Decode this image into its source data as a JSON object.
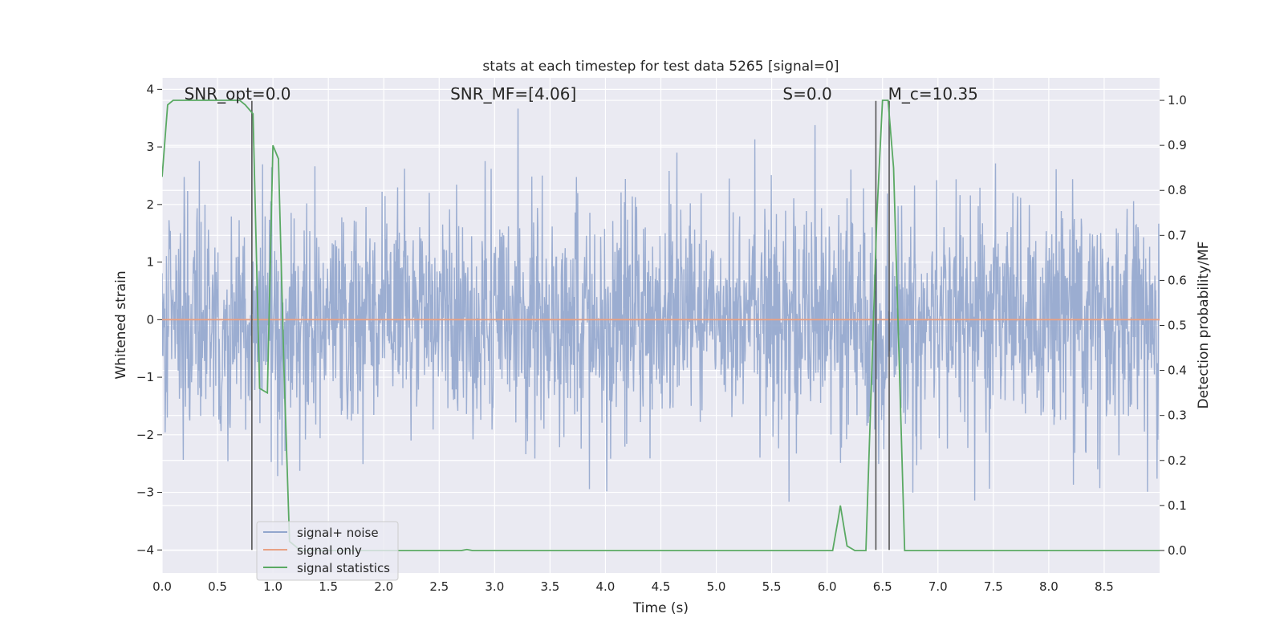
{
  "chart_data": {
    "type": "line",
    "title": "stats at each timestep for test data 5265 [signal=0]",
    "xlabel": "Time (s)",
    "ylabel": "Whitened strain",
    "y2label": "Detection probability/MF",
    "xlim": [
      0.0,
      9.0
    ],
    "ylim": [
      -4.4,
      4.2
    ],
    "y2lim": [
      -0.05,
      1.05
    ],
    "xticks": [
      "0.0",
      "0.5",
      "1.0",
      "1.5",
      "2.0",
      "2.5",
      "3.0",
      "3.5",
      "4.0",
      "4.5",
      "5.0",
      "5.5",
      "6.0",
      "6.5",
      "7.0",
      "7.5",
      "8.0",
      "8.5"
    ],
    "yticks": [
      "4",
      "3",
      "2",
      "1",
      "0",
      "−1",
      "−2",
      "−3",
      "−4"
    ],
    "y2ticks": [
      "1.0",
      "0.9",
      "0.8",
      "0.7",
      "0.6",
      "0.5",
      "0.4",
      "0.3",
      "0.2",
      "0.1",
      "0.0"
    ],
    "grid": true,
    "legend_position": "lower-left",
    "annotations": [
      {
        "text": "SNR_opt=0.0",
        "x": 0.2
      },
      {
        "text": "SNR_MF=[4.06]",
        "x": 2.6
      },
      {
        "text": "S=0.0",
        "x": 5.6
      },
      {
        "text": "M_c=10.35",
        "x": 6.55
      }
    ],
    "series": [
      {
        "name": "signal+ noise",
        "color": "#92a6cd",
        "kind": "noise",
        "sample_rate_hz": 256,
        "std": 1.0,
        "range_min": -3.65,
        "range_max": 3.8
      },
      {
        "name": "signal only",
        "color": "#e8a184",
        "x": [
          0.0,
          9.0
        ],
        "y": [
          0.0,
          0.0
        ]
      },
      {
        "name": "signal statistics",
        "color": "#5aa963",
        "axis": "right",
        "x": [
          0.0,
          0.05,
          0.1,
          0.7,
          0.75,
          0.82,
          0.88,
          0.95,
          1.0,
          1.05,
          1.1,
          1.15,
          1.25,
          2.5,
          2.7,
          2.75,
          2.8,
          6.05,
          6.1,
          6.12,
          6.18,
          6.25,
          6.35,
          6.45,
          6.5,
          6.55,
          6.6,
          6.7,
          6.75,
          9.0
        ],
        "y": [
          0.83,
          0.99,
          1.0,
          1.0,
          0.99,
          0.97,
          0.36,
          0.35,
          0.9,
          0.87,
          0.4,
          0.02,
          0.0,
          0.0,
          0.0,
          0.002,
          0.0,
          0.0,
          0.07,
          0.1,
          0.01,
          0.0,
          0.0,
          0.75,
          1.0,
          1.0,
          0.85,
          0.0,
          0.0,
          0.0
        ]
      }
    ],
    "vlines": [
      {
        "x": 0.81,
        "from": -4.0,
        "to": 3.8
      },
      {
        "x": 6.44,
        "from": -4.0,
        "to": 3.8
      },
      {
        "x": 6.56,
        "from": -4.0,
        "to": 3.8
      }
    ]
  },
  "legend": {
    "items": [
      "signal+ noise",
      "signal only",
      "signal statistics"
    ]
  }
}
